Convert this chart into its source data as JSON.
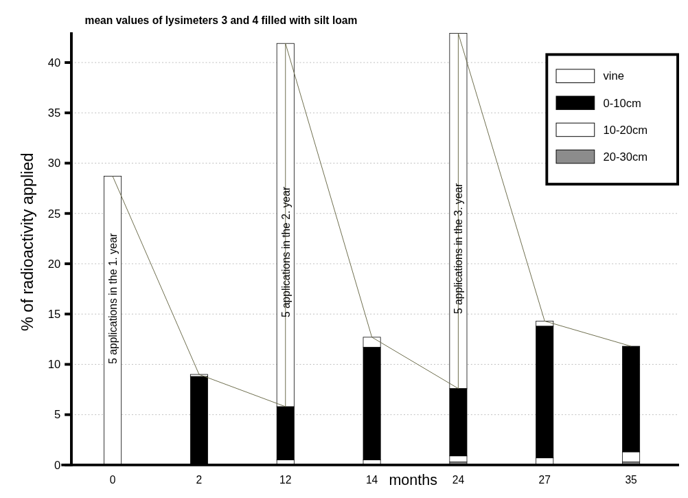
{
  "chart_data": {
    "type": "bar",
    "title": "mean values of lysimeters 3 and 4 filled with silt loam",
    "xlabel": "months",
    "ylabel": "% of radioactivity applied",
    "categories": [
      "0",
      "2",
      "12",
      "14",
      "24",
      "27",
      "35"
    ],
    "stacked": true,
    "ylim": [
      0,
      43
    ],
    "yticks": [
      0,
      5,
      10,
      15,
      20,
      25,
      30,
      35,
      40
    ],
    "grid": "y",
    "legend": "top right",
    "series": [
      {
        "name": "20-30cm",
        "color": "#8c8c8c",
        "values": [
          0,
          0,
          0,
          0,
          0.3,
          0,
          0.3
        ]
      },
      {
        "name": "10-20cm",
        "color": "#ffffff",
        "values": [
          0,
          0.1,
          0.5,
          0.5,
          0.6,
          0.7,
          1.0
        ]
      },
      {
        "name": "0-10cm",
        "color": "#000000",
        "values": [
          0,
          8.7,
          5.3,
          11.2,
          6.7,
          13.1,
          10.5
        ]
      },
      {
        "name": "vine",
        "color": "#ffffff",
        "values": [
          28.7,
          0.2,
          36.1,
          1.0,
          35.3,
          0.5,
          0
        ]
      },
      {
        "type": "line",
        "color": "#6b6b4a",
        "x": [
          "0",
          "2",
          "12",
          "12",
          "14",
          "24",
          "24",
          "27",
          "35"
        ],
        "values": [
          28.7,
          9.0,
          5.8,
          41.9,
          12.7,
          7.6,
          42.9,
          14.3,
          11.8
        ]
      }
    ],
    "annotations": [
      "5 applications in the 1. year",
      "5 applications in the 2. year",
      "5 applications in the 3. year"
    ]
  }
}
